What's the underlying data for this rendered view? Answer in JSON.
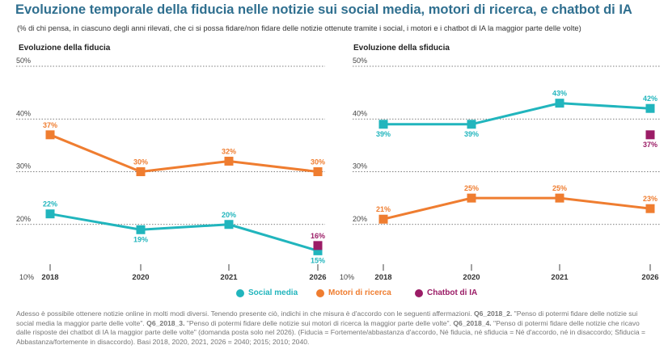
{
  "title": "Evoluzione temporale della fiducia nelle notizie sui social media, motori di ricerca, e chatbot di IA",
  "subtitle": "(% di chi pensa, in ciascuno degli anni rilevati, che ci si possa fidare/non fidare delle notizie ottenute tramite i social, i motori e i chatbot di IA la maggior parte delle volte)",
  "legend": [
    {
      "name": "Social media",
      "color": "#21b5bd"
    },
    {
      "name": "Motori di ricerca",
      "color": "#ef7d30"
    },
    {
      "name": "Chatbot di IA",
      "color": "#9b1c66"
    }
  ],
  "footnote": {
    "p1": "Adesso è possibile ottenere notizie online in molti modi diversi. Tenendo presente ciò, indichi in che misura è d'accordo con le seguenti affermazioni. ",
    "c1": "Q6_2018_2.",
    "p2": " \"Penso di potermi fidare delle notizie sui social media la maggior parte delle volte\". ",
    "c2": "Q6_2018_3.",
    "p3": " \"Penso di potermi fidare delle notizie sui motori di ricerca la maggior parte delle volte\". ",
    "c3": "Q6_2018_4.",
    "p4": " \"Penso di potermi fidare delle notizie che ricavo dalle risposte dei chatbot di IA la maggior parte delle volte\" (domanda posta solo nel 2026). (Fiducia = Fortemente/abbastanza d'accordo, Né fiducia, né sfiducia = Né d'accordo, né in disaccordo; Sfiducia = Abbastanza/fortemente in disaccordo). Basi 2018, 2020, 2021, 2026 = 2040; 2015; 2010; 2040."
  },
  "chart_data": [
    {
      "type": "line",
      "title": "Evoluzione della fiducia",
      "x": [
        "2018",
        "2020",
        "2021",
        "2026"
      ],
      "ylim": [
        10,
        50
      ],
      "yticks": [
        "10%",
        "20%",
        "30%",
        "40%",
        "50%"
      ],
      "grid": true,
      "series": [
        {
          "name": "Social media",
          "color": "#21b5bd",
          "values": [
            22,
            19,
            20,
            15
          ],
          "labels": [
            "22%",
            "19%",
            "20%",
            "15%"
          ]
        },
        {
          "name": "Motori di ricerca",
          "color": "#ef7d30",
          "values": [
            37,
            30,
            32,
            30
          ],
          "labels": [
            "37%",
            "30%",
            "32%",
            "30%"
          ]
        },
        {
          "name": "Chatbot di IA",
          "color": "#9b1c66",
          "values": [
            null,
            null,
            null,
            16
          ],
          "labels": [
            null,
            null,
            null,
            "16%"
          ]
        }
      ]
    },
    {
      "type": "line",
      "title": "Evoluzione della sfiducia",
      "x": [
        "2018",
        "2020",
        "2021",
        "2026"
      ],
      "ylim": [
        10,
        50
      ],
      "yticks": [
        "10%",
        "20%",
        "30%",
        "40%",
        "50%"
      ],
      "grid": true,
      "series": [
        {
          "name": "Social media",
          "color": "#21b5bd",
          "values": [
            39,
            39,
            43,
            42
          ],
          "labels": [
            "39%",
            "39%",
            "43%",
            "42%"
          ]
        },
        {
          "name": "Motori di ricerca",
          "color": "#ef7d30",
          "values": [
            21,
            25,
            25,
            23
          ],
          "labels": [
            "21%",
            "25%",
            "25%",
            "23%"
          ]
        },
        {
          "name": "Chatbot di IA",
          "color": "#9b1c66",
          "values": [
            null,
            null,
            null,
            37
          ],
          "labels": [
            null,
            null,
            null,
            "37%"
          ]
        }
      ]
    }
  ]
}
